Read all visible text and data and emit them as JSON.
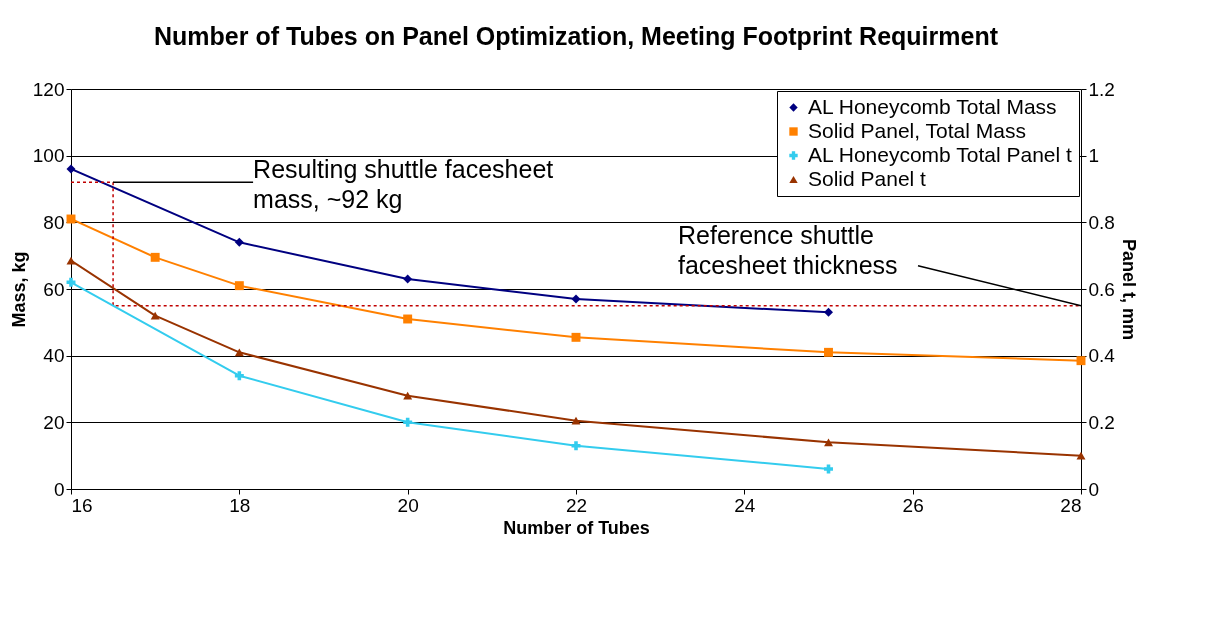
{
  "chart_data": {
    "type": "line",
    "title": "Number of Tubes on Panel Optimization, Meeting Footprint Requirment",
    "xlabel": "Number of Tubes",
    "ylabel": "Mass, kg",
    "y2label": "Panel t, mm",
    "xlim": [
      16,
      28
    ],
    "xticks": [
      16,
      18,
      20,
      22,
      24,
      26,
      28
    ],
    "ylim": [
      0,
      120
    ],
    "yticks": [
      0,
      20,
      40,
      60,
      80,
      100,
      120
    ],
    "y2lim": [
      0,
      1.2
    ],
    "y2ticks": [
      0,
      0.2,
      0.4,
      0.6,
      0.8,
      1,
      1.2
    ],
    "grid": "y",
    "legend": "top right",
    "line_style": "solid",
    "series": [
      {
        "name": "AL Honeycomb Total Mass",
        "color": "#000080",
        "marker": "diamond",
        "x": [
          16,
          18,
          20,
          22,
          25
        ],
        "values": [
          96,
          74,
          63,
          57,
          53
        ]
      },
      {
        "name": "Solid Panel, Total Mass",
        "color": "#ff8000",
        "marker": "square",
        "x": [
          16,
          17,
          18,
          20,
          22,
          25,
          28
        ],
        "values": [
          81,
          69.5,
          61,
          51,
          45.5,
          41,
          38.5
        ]
      },
      {
        "name": "AL Honeycomb Total Panel t",
        "color": "#33ccee",
        "marker": "cross",
        "axis": "y2",
        "x": [
          16,
          18,
          20,
          22,
          25
        ],
        "values": [
          0.62,
          0.34,
          0.2,
          0.13,
          0.06
        ]
      },
      {
        "name": "Solid Panel t",
        "color": "#993300",
        "marker": "triangle",
        "axis": "y2",
        "x": [
          16,
          17,
          18,
          20,
          22,
          25,
          28
        ],
        "values": [
          0.685,
          0.52,
          0.41,
          0.28,
          0.205,
          0.14,
          0.1
        ]
      },
      {
        "type": "line",
        "color": "#c00000",
        "marker": "none",
        "line_style": "dotted",
        "x": [
          16,
          16.5,
          16.5,
          28
        ],
        "values": [
          92,
          92,
          55,
          55
        ]
      }
    ],
    "annotations": [
      {
        "text": "Resulting shuttle facesheet mass, ~92 kg",
        "x": 16.5,
        "y": 92
      },
      {
        "text": "Reference shuttle facesheet thickness",
        "x": 28,
        "y": 55
      }
    ]
  }
}
